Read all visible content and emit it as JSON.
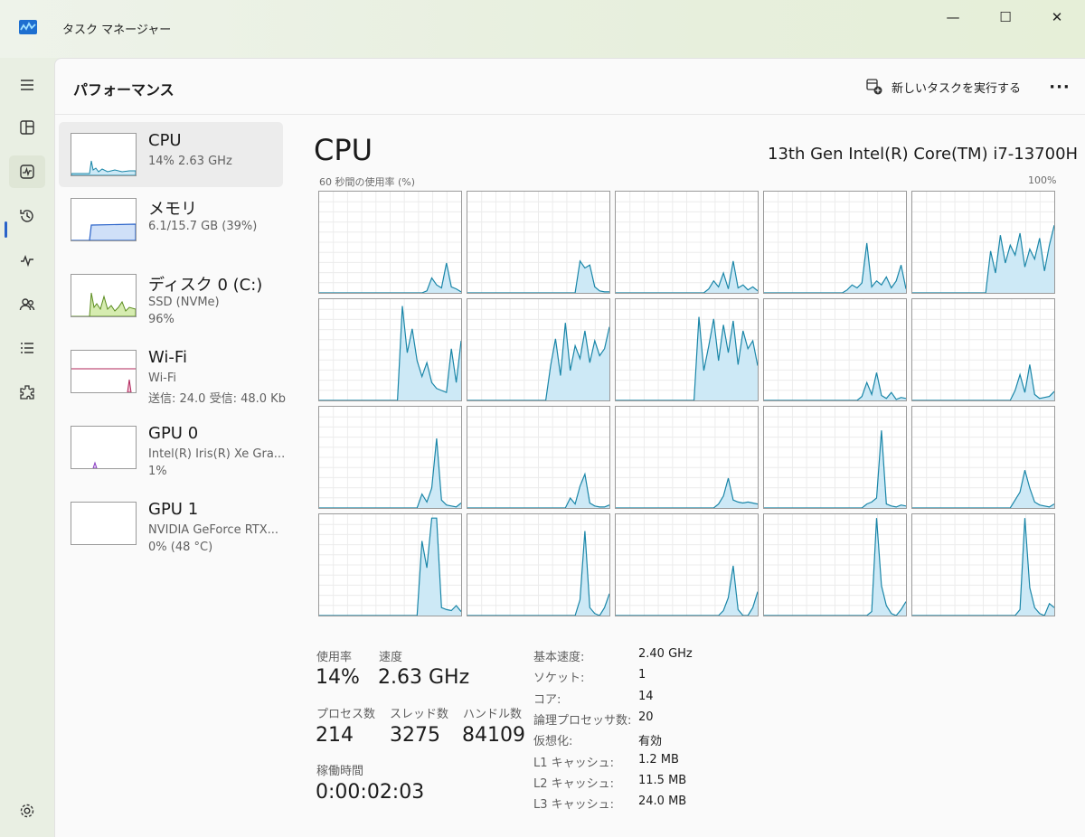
{
  "window": {
    "title": "タスク マネージャー",
    "minimize_glyph": "—",
    "maximize_glyph": "☐",
    "close_glyph": "✕"
  },
  "header": {
    "title": "パフォーマンス",
    "run_task_label": "新しいタスクを実行する",
    "more_glyph": "···"
  },
  "nav": {
    "items": [
      "hamburger-icon",
      "processes-icon",
      "performance-icon",
      "app-history-icon",
      "startup-apps-icon",
      "users-icon",
      "details-icon",
      "services-icon",
      "settings-icon"
    ],
    "active": "performance-icon"
  },
  "sidebar": {
    "items": [
      {
        "title": "CPU",
        "line1": "14% 2.63 GHz",
        "line2": "",
        "selected": true,
        "color": "#1785b4"
      },
      {
        "title": "メモリ",
        "line1": "6.1/15.7 GB (39%)",
        "line2": "",
        "selected": false,
        "color": "#2a63c9"
      },
      {
        "title": "ディスク 0 (C:)",
        "line1": "SSD (NVMe)",
        "line2": "96%",
        "selected": false,
        "color": "#5b8c1f"
      },
      {
        "title": "Wi-Fi",
        "line1": "Wi-Fi",
        "line2": "送信: 24.0 受信: 48.0 Kb",
        "selected": false,
        "color": "#b0245a"
      },
      {
        "title": "GPU 0",
        "line1": "Intel(R) Iris(R) Xe Gra...",
        "line2": "1%",
        "selected": false,
        "color": "#8a3fc2"
      },
      {
        "title": "GPU 1",
        "line1": "NVIDIA GeForce RTX...",
        "line2": "0% (48 °C)",
        "selected": false,
        "color": "#8a3fc2"
      }
    ]
  },
  "main": {
    "title": "CPU",
    "model": "13th Gen Intel(R) Core(TM) i7-13700H",
    "axis_label": "60 秒間の使用率 (%)",
    "axis_max": "100%",
    "line_color": "#1a86a8",
    "fill_color": "#cde9f6"
  },
  "stats": {
    "usage_label": "使用率",
    "usage_value": "14%",
    "speed_label": "速度",
    "speed_value": "2.63 GHz",
    "processes_label": "プロセス数",
    "processes_value": "214",
    "threads_label": "スレッド数",
    "threads_value": "3275",
    "handles_label": "ハンドル数",
    "handles_value": "84109",
    "uptime_label": "稼働時間",
    "uptime_value": "0:00:02:03"
  },
  "specs": [
    {
      "key": "基本速度:",
      "value": "2.40 GHz"
    },
    {
      "key": "ソケット:",
      "value": "1"
    },
    {
      "key": "コア:",
      "value": "14"
    },
    {
      "key": "論理プロセッサ数:",
      "value": "20"
    },
    {
      "key": "仮想化:",
      "value": "有効"
    },
    {
      "key": "L1 キャッシュ:",
      "value": "1.2 MB"
    },
    {
      "key": "L2 キャッシュ:",
      "value": "11.5 MB"
    },
    {
      "key": "L3 キャッシュ:",
      "value": "24.0 MB"
    }
  ],
  "chart_data": {
    "type": "area",
    "title": "60 秒間の使用率 (%)",
    "ylim": [
      0,
      100
    ],
    "x_points": 30,
    "series": [
      {
        "values": [
          0,
          0,
          0,
          0,
          0,
          0,
          0,
          0,
          0,
          0,
          0,
          0,
          0,
          0,
          0,
          0,
          0,
          0,
          0,
          0,
          0,
          0,
          2,
          15,
          8,
          5,
          30,
          6,
          4,
          1
        ]
      },
      {
        "values": [
          0,
          0,
          0,
          0,
          0,
          0,
          0,
          0,
          0,
          0,
          0,
          0,
          0,
          0,
          0,
          0,
          0,
          0,
          0,
          0,
          0,
          0,
          0,
          32,
          25,
          28,
          6,
          2,
          1,
          1
        ]
      },
      {
        "values": [
          0,
          0,
          0,
          0,
          0,
          0,
          0,
          0,
          0,
          0,
          0,
          0,
          0,
          0,
          0,
          0,
          0,
          0,
          0,
          4,
          12,
          6,
          20,
          4,
          32,
          5,
          8,
          3,
          6,
          2
        ]
      },
      {
        "values": [
          0,
          0,
          0,
          0,
          0,
          0,
          0,
          0,
          0,
          0,
          0,
          0,
          0,
          0,
          0,
          0,
          0,
          3,
          8,
          5,
          10,
          50,
          6,
          12,
          8,
          16,
          5,
          12,
          28,
          4
        ]
      },
      {
        "values": [
          0,
          0,
          0,
          0,
          0,
          0,
          0,
          0,
          0,
          0,
          0,
          0,
          0,
          0,
          0,
          0,
          42,
          20,
          58,
          30,
          48,
          38,
          60,
          26,
          44,
          34,
          55,
          22,
          48,
          68
        ]
      },
      {
        "values": [
          0,
          0,
          0,
          0,
          0,
          0,
          0,
          0,
          0,
          0,
          0,
          0,
          0,
          0,
          0,
          0,
          0,
          95,
          48,
          72,
          40,
          24,
          38,
          18,
          12,
          10,
          8,
          52,
          18,
          60
        ]
      },
      {
        "values": [
          0,
          0,
          0,
          0,
          0,
          0,
          0,
          0,
          0,
          0,
          0,
          0,
          0,
          0,
          0,
          0,
          0,
          35,
          62,
          25,
          78,
          30,
          55,
          42,
          70,
          38,
          60,
          45,
          52,
          74
        ]
      },
      {
        "values": [
          0,
          0,
          0,
          0,
          0,
          0,
          0,
          0,
          0,
          0,
          0,
          0,
          0,
          0,
          0,
          0,
          0,
          84,
          30,
          55,
          82,
          40,
          76,
          48,
          80,
          36,
          70,
          52,
          60,
          35
        ]
      },
      {
        "values": [
          0,
          0,
          0,
          0,
          0,
          0,
          0,
          0,
          0,
          0,
          0,
          0,
          0,
          0,
          0,
          0,
          0,
          0,
          0,
          0,
          4,
          18,
          6,
          28,
          5,
          2,
          8,
          1,
          3,
          2
        ]
      },
      {
        "values": [
          0,
          0,
          0,
          0,
          0,
          0,
          0,
          0,
          0,
          0,
          0,
          0,
          0,
          0,
          0,
          0,
          0,
          0,
          0,
          0,
          0,
          10,
          26,
          8,
          36,
          6,
          2,
          3,
          4,
          9
        ]
      },
      {
        "values": [
          0,
          0,
          0,
          0,
          0,
          0,
          0,
          0,
          0,
          0,
          0,
          0,
          0,
          0,
          0,
          0,
          0,
          0,
          0,
          0,
          0,
          14,
          6,
          20,
          70,
          8,
          3,
          2,
          1,
          5
        ]
      },
      {
        "values": [
          0,
          0,
          0,
          0,
          0,
          0,
          0,
          0,
          0,
          0,
          0,
          0,
          0,
          0,
          0,
          0,
          0,
          0,
          0,
          0,
          0,
          10,
          4,
          22,
          34,
          5,
          2,
          1,
          1,
          3
        ]
      },
      {
        "values": [
          0,
          0,
          0,
          0,
          0,
          0,
          0,
          0,
          0,
          0,
          0,
          0,
          0,
          0,
          0,
          0,
          0,
          0,
          0,
          0,
          0,
          4,
          12,
          30,
          8,
          6,
          5,
          6,
          5,
          4
        ]
      },
      {
        "values": [
          0,
          0,
          0,
          0,
          0,
          0,
          0,
          0,
          0,
          0,
          0,
          0,
          0,
          0,
          0,
          0,
          0,
          0,
          0,
          0,
          0,
          4,
          6,
          10,
          78,
          4,
          2,
          1,
          3,
          2
        ]
      },
      {
        "values": [
          0,
          0,
          0,
          0,
          0,
          0,
          0,
          0,
          0,
          0,
          0,
          0,
          0,
          0,
          0,
          0,
          0,
          0,
          0,
          0,
          0,
          8,
          16,
          38,
          20,
          6,
          3,
          2,
          1,
          4
        ]
      },
      {
        "values": [
          0,
          0,
          0,
          0,
          0,
          0,
          0,
          0,
          0,
          0,
          0,
          0,
          0,
          0,
          0,
          0,
          0,
          0,
          0,
          0,
          0,
          75,
          48,
          98,
          98,
          8,
          6,
          5,
          10,
          4
        ]
      },
      {
        "values": [
          0,
          0,
          0,
          0,
          0,
          0,
          0,
          0,
          0,
          0,
          0,
          0,
          0,
          0,
          0,
          0,
          0,
          0,
          0,
          0,
          0,
          0,
          0,
          16,
          85,
          8,
          2,
          0,
          8,
          22
        ]
      },
      {
        "values": [
          0,
          0,
          0,
          0,
          0,
          0,
          0,
          0,
          0,
          0,
          0,
          0,
          0,
          0,
          0,
          0,
          0,
          0,
          0,
          0,
          0,
          0,
          5,
          18,
          50,
          6,
          0,
          0,
          8,
          24
        ]
      },
      {
        "values": [
          0,
          0,
          0,
          0,
          0,
          0,
          0,
          0,
          0,
          0,
          0,
          0,
          0,
          0,
          0,
          0,
          0,
          0,
          0,
          0,
          0,
          0,
          4,
          98,
          30,
          10,
          2,
          0,
          6,
          14
        ]
      },
      {
        "values": [
          0,
          0,
          0,
          0,
          0,
          0,
          0,
          0,
          0,
          0,
          0,
          0,
          0,
          0,
          0,
          0,
          0,
          0,
          0,
          0,
          0,
          0,
          6,
          98,
          28,
          8,
          2,
          0,
          12,
          8
        ]
      }
    ]
  }
}
